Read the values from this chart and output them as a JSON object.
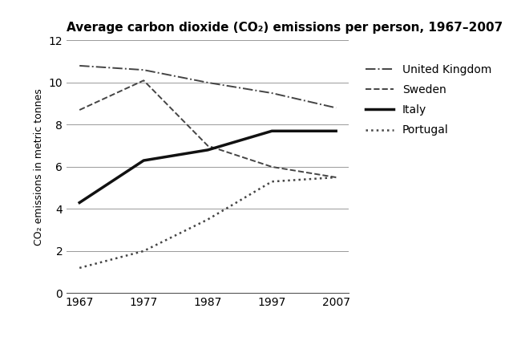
{
  "title": "Average carbon dioxide (CO₂) emissions per person, 1967–2007",
  "ylabel": "CO₂ emissions in metric tonnes",
  "years": [
    1967,
    1977,
    1987,
    1997,
    2007
  ],
  "series": {
    "United Kingdom": {
      "values": [
        10.8,
        10.6,
        10.0,
        9.5,
        8.8
      ],
      "linestyle": "dashdot",
      "linewidth": 1.4,
      "color": "#444444"
    },
    "Sweden": {
      "values": [
        8.7,
        10.1,
        7.0,
        6.0,
        5.5
      ],
      "linestyle": "dashed",
      "linewidth": 1.4,
      "color": "#444444"
    },
    "Italy": {
      "values": [
        4.3,
        6.3,
        6.8,
        7.7,
        7.7
      ],
      "linestyle": "solid",
      "linewidth": 2.5,
      "color": "#111111"
    },
    "Portugal": {
      "values": [
        1.2,
        2.0,
        3.5,
        5.3,
        5.5
      ],
      "linestyle": "dotted",
      "linewidth": 1.8,
      "color": "#444444"
    }
  },
  "ylim": [
    0,
    12
  ],
  "yticks": [
    0,
    2,
    4,
    6,
    8,
    10,
    12
  ],
  "xticks": [
    1967,
    1977,
    1987,
    1997,
    2007
  ],
  "background_color": "#ffffff",
  "grid_color": "#999999",
  "title_fontsize": 11,
  "label_fontsize": 9,
  "tick_fontsize": 10,
  "legend_fontsize": 10
}
